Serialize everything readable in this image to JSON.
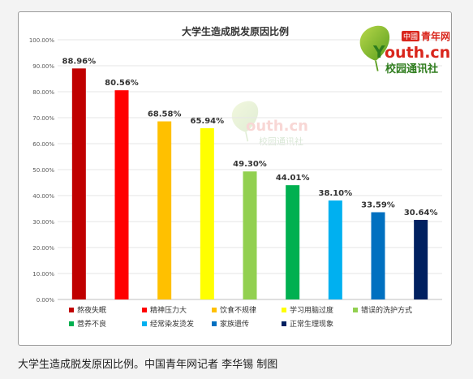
{
  "caption": "大学生造成脱发原因比例。中国青年网记者 李华锡 制图",
  "logo": {
    "badge": "中國",
    "name": "青年网",
    "domain": "outh.cn",
    "domain_initial": "Y",
    "sub": "校园通讯社"
  },
  "chart_data": {
    "type": "bar",
    "title": "大学生造成脱发原因比例",
    "xlabel": "",
    "ylabel": "",
    "ylim": [
      0,
      100
    ],
    "yticks": [
      "0.00%",
      "10.00%",
      "20.00%",
      "30.00%",
      "40.00%",
      "50.00%",
      "60.00%",
      "70.00%",
      "80.00%",
      "90.00%",
      "100.00%"
    ],
    "grid": true,
    "legend_position": "bottom",
    "categories": [
      "熬夜失眠",
      "精神压力大",
      "饮食不规律",
      "学习用脑过度",
      "错误的洗护方式",
      "营养不良",
      "经常染发烫发",
      "家族遗传",
      "正常生理现象"
    ],
    "values": [
      88.96,
      80.56,
      68.58,
      65.94,
      49.3,
      44.01,
      38.1,
      33.59,
      30.64
    ],
    "value_labels": [
      "88.96%",
      "80.56%",
      "68.58%",
      "65.94%",
      "49.30%",
      "44.01%",
      "38.10%",
      "33.59%",
      "30.64%"
    ],
    "colors": [
      "#c00000",
      "#ff0000",
      "#ffc000",
      "#ffff00",
      "#92d050",
      "#00b050",
      "#00b0f0",
      "#0070c0",
      "#002060"
    ]
  }
}
